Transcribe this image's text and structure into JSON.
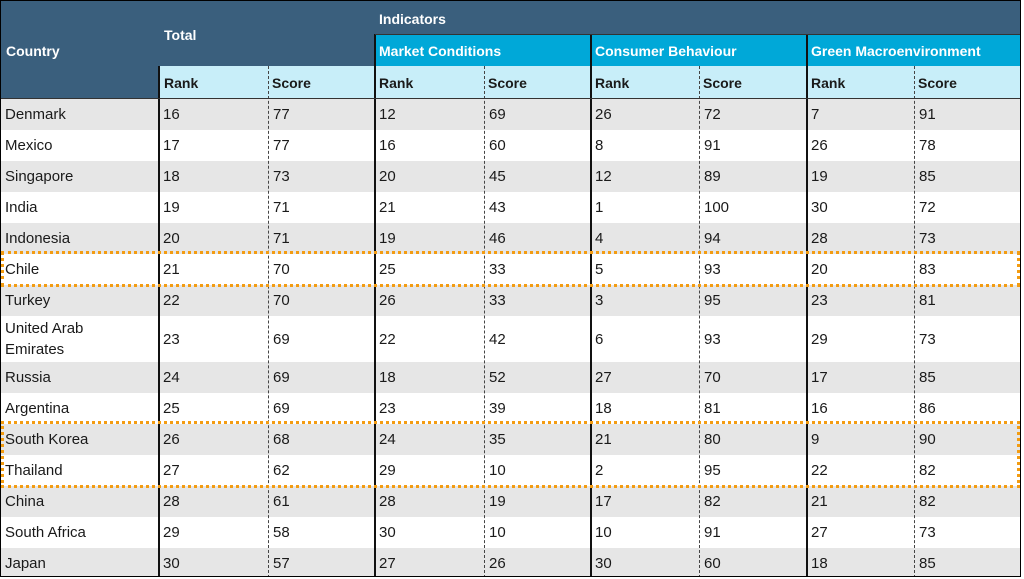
{
  "headers": {
    "country": "Country",
    "total": "Total",
    "indicators": "Indicators",
    "groups": [
      "Market Conditions",
      "Consumer Behaviour",
      "Green Macroenvironment"
    ],
    "rank": "Rank",
    "score": "Score"
  },
  "rows": [
    {
      "country": "Denmark",
      "t_rank": "16",
      "t_score": "77",
      "m_rank": "12",
      "m_score": "69",
      "c_rank": "26",
      "c_score": "72",
      "g_rank": "7",
      "g_score": "91"
    },
    {
      "country": "Mexico",
      "t_rank": "17",
      "t_score": "77",
      "m_rank": "16",
      "m_score": "60",
      "c_rank": "8",
      "c_score": "91",
      "g_rank": "26",
      "g_score": "78"
    },
    {
      "country": "Singapore",
      "t_rank": "18",
      "t_score": "73",
      "m_rank": "20",
      "m_score": "45",
      "c_rank": "12",
      "c_score": "89",
      "g_rank": "19",
      "g_score": "85"
    },
    {
      "country": "India",
      "t_rank": "19",
      "t_score": "71",
      "m_rank": "21",
      "m_score": "43",
      "c_rank": "1",
      "c_score": "100",
      "g_rank": "30",
      "g_score": "72"
    },
    {
      "country": "Indonesia",
      "t_rank": "20",
      "t_score": "71",
      "m_rank": "19",
      "m_score": "46",
      "c_rank": "4",
      "c_score": "94",
      "g_rank": "28",
      "g_score": "73"
    },
    {
      "country": "Chile",
      "t_rank": "21",
      "t_score": "70",
      "m_rank": "25",
      "m_score": "33",
      "c_rank": "5",
      "c_score": "93",
      "g_rank": "20",
      "g_score": "83"
    },
    {
      "country": "Turkey",
      "t_rank": "22",
      "t_score": "70",
      "m_rank": "26",
      "m_score": "33",
      "c_rank": "3",
      "c_score": "95",
      "g_rank": "23",
      "g_score": "81"
    },
    {
      "country": "United Arab\nEmirates",
      "t_rank": "23",
      "t_score": "69",
      "m_rank": "22",
      "m_score": "42",
      "c_rank": "6",
      "c_score": "93",
      "g_rank": "29",
      "g_score": "73"
    },
    {
      "country": "Russia",
      "t_rank": "24",
      "t_score": "69",
      "m_rank": "18",
      "m_score": "52",
      "c_rank": "27",
      "c_score": "70",
      "g_rank": "17",
      "g_score": "85"
    },
    {
      "country": "Argentina",
      "t_rank": "25",
      "t_score": "69",
      "m_rank": "23",
      "m_score": "39",
      "c_rank": "18",
      "c_score": "81",
      "g_rank": "16",
      "g_score": "86"
    },
    {
      "country": "South Korea",
      "t_rank": "26",
      "t_score": "68",
      "m_rank": "24",
      "m_score": "35",
      "c_rank": "21",
      "c_score": "80",
      "g_rank": "9",
      "g_score": "90"
    },
    {
      "country": "Thailand",
      "t_rank": "27",
      "t_score": "62",
      "m_rank": "29",
      "m_score": "10",
      "c_rank": "2",
      "c_score": "95",
      "g_rank": "22",
      "g_score": "82"
    },
    {
      "country": "China",
      "t_rank": "28",
      "t_score": "61",
      "m_rank": "28",
      "m_score": "19",
      "c_rank": "17",
      "c_score": "82",
      "g_rank": "21",
      "g_score": "82"
    },
    {
      "country": "South Africa",
      "t_rank": "29",
      "t_score": "58",
      "m_rank": "30",
      "m_score": "10",
      "c_rank": "10",
      "c_score": "91",
      "g_rank": "27",
      "g_score": "73"
    },
    {
      "country": "Japan",
      "t_rank": "30",
      "t_score": "57",
      "m_rank": "27",
      "m_score": "26",
      "c_rank": "30",
      "c_score": "60",
      "g_rank": "18",
      "g_score": "85"
    }
  ],
  "highlighted_countries": [
    "Chile",
    "South Korea",
    "Thailand"
  ],
  "colors": {
    "header_dark": "#3a5f7d",
    "header_cyan": "#00a8d8",
    "header_light": "#c8eef9",
    "row_shade": "#e6e6e6",
    "highlight": "#f39c12"
  }
}
